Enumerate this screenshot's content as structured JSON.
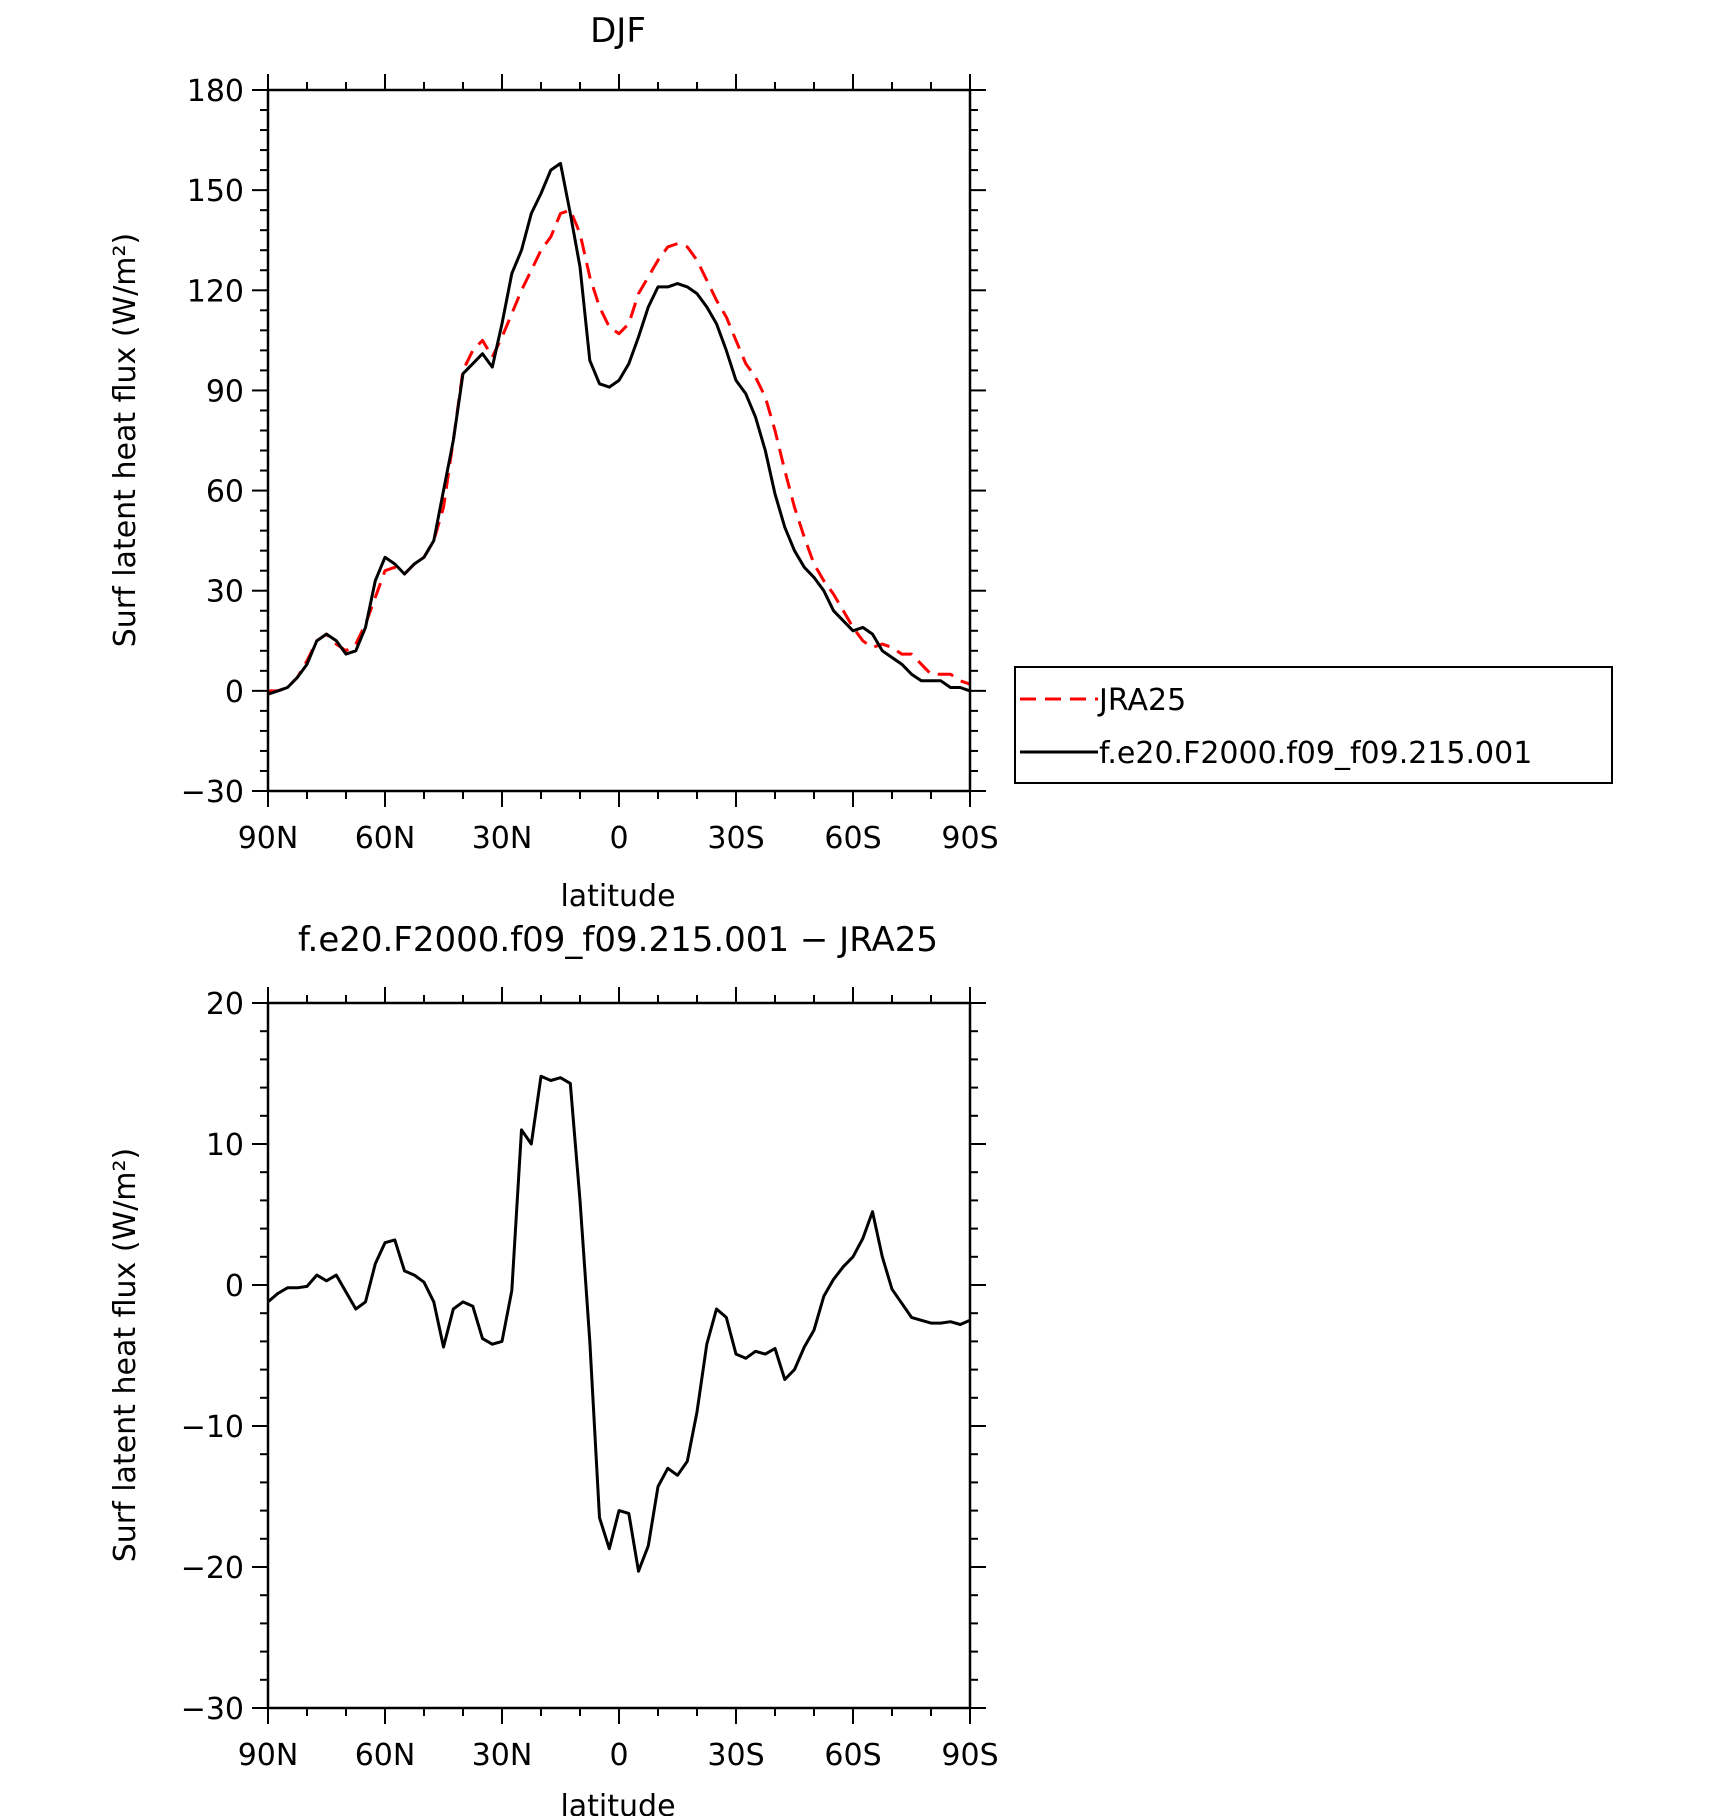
{
  "chart_data": [
    {
      "type": "line",
      "title": "DJF",
      "xlabel": "latitude",
      "ylabel": "Surf latent heat flux (W/m²)",
      "xlim": [
        90,
        -90
      ],
      "ylim": [
        -30,
        180
      ],
      "xticks": [
        90,
        60,
        30,
        0,
        -30,
        -60,
        -90
      ],
      "xtick_labels": [
        "90N",
        "60N",
        "30N",
        "0",
        "30S",
        "60S",
        "90S"
      ],
      "yticks": [
        -30,
        0,
        30,
        60,
        90,
        120,
        150,
        180
      ],
      "ytick_labels": [
        "−30",
        "0",
        "30",
        "60",
        "90",
        "120",
        "150",
        "180"
      ],
      "legend": {
        "placement": "right",
        "entries": [
          "JRA25",
          "f.e20.F2000.f09_f09.215.001"
        ]
      },
      "series": [
        {
          "name": "JRA25",
          "style": "dashed",
          "color": "#ff0000",
          "x": [
            90,
            87.5,
            85,
            82.5,
            80,
            77.5,
            75,
            72.5,
            70,
            67.5,
            65,
            62.5,
            60,
            57.5,
            55,
            52.5,
            50,
            47.5,
            45,
            42.5,
            40,
            37.5,
            35,
            32.5,
            30,
            27.5,
            25,
            22.5,
            20,
            17.5,
            15,
            12.5,
            10,
            7.5,
            5,
            2.5,
            0,
            -2.5,
            -5,
            -7.5,
            -10,
            -12.5,
            -15,
            -17.5,
            -20,
            -22.5,
            -25,
            -27.5,
            -30,
            -32.5,
            -35,
            -37.5,
            -40,
            -42.5,
            -45,
            -47.5,
            -50,
            -52.5,
            -55,
            -57.5,
            -60,
            -62.5,
            -65,
            -67.5,
            -70,
            -72.5,
            -75,
            -77.5,
            -80,
            -82.5,
            -85,
            -87.5,
            -90
          ],
          "values": [
            0,
            0,
            1,
            4,
            9,
            15,
            17,
            14,
            12,
            14,
            20,
            28,
            36,
            37,
            35,
            38,
            40,
            45,
            55,
            75,
            96,
            102,
            105,
            100,
            106,
            113,
            120,
            126,
            132,
            136,
            143,
            144,
            137,
            124,
            115,
            109,
            107,
            110,
            119,
            124,
            129,
            133,
            134,
            133,
            129,
            123,
            117,
            112,
            105,
            98,
            94,
            88,
            78,
            66,
            55,
            46,
            38,
            33,
            29,
            24,
            19,
            15,
            13,
            14,
            13,
            11,
            11,
            8,
            5,
            5,
            5,
            3,
            2
          ]
        },
        {
          "name": "f.e20.F2000.f09_f09.215.001",
          "style": "solid",
          "color": "#000000",
          "x": [
            90,
            87.5,
            85,
            82.5,
            80,
            77.5,
            75,
            72.5,
            70,
            67.5,
            65,
            62.5,
            60,
            57.5,
            55,
            52.5,
            50,
            47.5,
            45,
            42.5,
            40,
            37.5,
            35,
            32.5,
            30,
            27.5,
            25,
            22.5,
            20,
            17.5,
            15,
            12.5,
            10,
            7.5,
            5,
            2.5,
            0,
            -2.5,
            -5,
            -7.5,
            -10,
            -12.5,
            -15,
            -17.5,
            -20,
            -22.5,
            -25,
            -27.5,
            -30,
            -32.5,
            -35,
            -37.5,
            -40,
            -42.5,
            -45,
            -47.5,
            -50,
            -52.5,
            -55,
            -57.5,
            -60,
            -62.5,
            -65,
            -67.5,
            -70,
            -72.5,
            -75,
            -77.5,
            -80,
            -82.5,
            -85,
            -87.5,
            -90
          ],
          "values": [
            -1,
            0,
            1,
            4,
            8,
            15,
            17,
            15,
            11,
            12,
            19,
            33,
            40,
            38,
            35,
            38,
            40,
            45,
            60,
            75,
            95,
            98,
            101,
            97,
            110,
            125,
            132,
            143,
            149,
            156,
            158,
            143,
            127,
            99,
            92,
            91,
            93,
            98,
            106,
            115,
            121,
            121,
            122,
            121,
            119,
            115,
            110,
            102,
            93,
            89,
            82,
            72,
            59,
            49,
            42,
            37,
            34,
            30,
            24,
            21,
            18,
            19,
            17,
            12,
            10,
            8,
            5,
            3,
            3,
            3,
            1,
            1,
            0
          ]
        }
      ]
    },
    {
      "type": "line",
      "title": "f.e20.F2000.f09_f09.215.001 − JRA25",
      "xlabel": "latitude",
      "ylabel": "Surf latent heat flux (W/m²)",
      "xlim": [
        90,
        -90
      ],
      "ylim": [
        -30,
        20
      ],
      "xticks": [
        90,
        60,
        30,
        0,
        -30,
        -60,
        -90
      ],
      "xtick_labels": [
        "90N",
        "60N",
        "30N",
        "0",
        "30S",
        "60S",
        "90S"
      ],
      "yticks": [
        -30,
        -20,
        -10,
        0,
        10,
        20
      ],
      "ytick_labels": [
        "−30",
        "−20",
        "−10",
        "0",
        "10",
        "20"
      ],
      "series": [
        {
          "style": "solid",
          "color": "#000000",
          "x": [
            90,
            87.5,
            85,
            82.5,
            80,
            77.5,
            75,
            72.5,
            70,
            67.5,
            65,
            62.5,
            60,
            57.5,
            55,
            52.5,
            50,
            47.5,
            45,
            42.5,
            40,
            37.5,
            35,
            32.5,
            30,
            27.5,
            25,
            22.5,
            20,
            17.5,
            15,
            12.5,
            10,
            7.5,
            5,
            2.5,
            0,
            -2.5,
            -5,
            -7.5,
            -10,
            -12.5,
            -15,
            -17.5,
            -20,
            -22.5,
            -25,
            -27.5,
            -30,
            -32.5,
            -35,
            -37.5,
            -40,
            -42.5,
            -45,
            -47.5,
            -50,
            -52.5,
            -55,
            -57.5,
            -60,
            -62.5,
            -65,
            -67.5,
            -70,
            -72.5,
            -75,
            -77.5,
            -80,
            -82.5,
            -85,
            -87.5,
            -90
          ],
          "values": [
            -1.2,
            -0.6,
            -0.2,
            -0.2,
            -0.1,
            0.7,
            0.3,
            0.7,
            -0.5,
            -1.7,
            -1.2,
            1.5,
            3.0,
            3.2,
            1.0,
            0.7,
            0.2,
            -1.2,
            -4.4,
            -1.7,
            -1.2,
            -1.5,
            -3.8,
            -4.2,
            -4.0,
            -0.4,
            11.0,
            10.0,
            14.8,
            14.5,
            14.7,
            14.3,
            6.0,
            -4.0,
            -16.5,
            -18.7,
            -16.0,
            -16.2,
            -20.3,
            -18.5,
            -14.3,
            -13.0,
            -13.5,
            -12.5,
            -9.0,
            -4.2,
            -1.7,
            -2.3,
            -4.9,
            -5.2,
            -4.7,
            -4.9,
            -4.5,
            -6.7,
            -6.0,
            -4.4,
            -3.2,
            -0.8,
            0.4,
            1.3,
            2.0,
            3.3,
            5.2,
            2.0,
            -0.3,
            -1.3,
            -2.3,
            -2.5,
            -2.7,
            -2.7,
            -2.6,
            -2.8,
            -2.5
          ]
        }
      ]
    }
  ]
}
